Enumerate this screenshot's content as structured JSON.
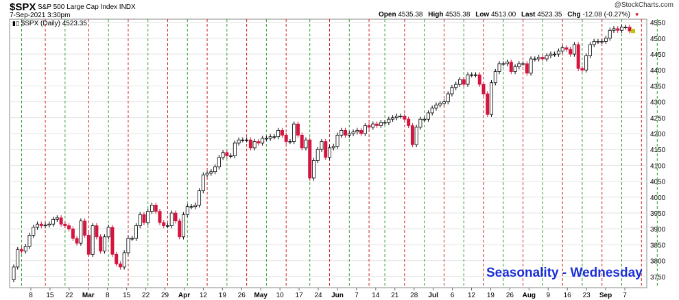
{
  "header": {
    "symbol": "$SPX",
    "description": "S&P 500 Large Cap Index INDX",
    "date": "7-Sep-2021 3:30pm",
    "copyright": "@StockCharts.com",
    "open_label": "Open",
    "open": "4535.38",
    "high_label": "High",
    "high": "4535.38",
    "low_label": "Low",
    "low": "4513.00",
    "last_label": "Last",
    "last": "4523.35",
    "chg_label": "Chg",
    "chg": "-12.08 (-0.27%)"
  },
  "legend": {
    "text": "$SPX (Daily) 4523.35"
  },
  "annotation": {
    "text": "Seasonality - Wednesday"
  },
  "colors": {
    "up": "#ffffff",
    "down": "#d4153f",
    "wed_line": "#2e9e2e",
    "other_line": "#d01c1c",
    "title_text": "#1a2fd6"
  },
  "chart_data": {
    "type": "candlestick",
    "y_axis": {
      "range": [
        3715,
        4560
      ],
      "ticks": [
        3750,
        3800,
        3850,
        3900,
        3950,
        4000,
        4050,
        4100,
        4150,
        4200,
        4250,
        4300,
        4350,
        4400,
        4450,
        4500,
        4550
      ],
      "side": "right"
    },
    "x_labels": [
      "8",
      "15",
      "22",
      "Mar",
      "8",
      "15",
      "22",
      "29",
      "Apr",
      "12",
      "19",
      "26",
      "May",
      "10",
      "17",
      "24",
      "Jun",
      "7",
      "14",
      "21",
      "28",
      "Jul",
      "6",
      "12",
      "19",
      "26",
      "Aug",
      "9",
      "16",
      "23",
      "Sep",
      "7"
    ],
    "x_labels_bold": [
      "Mar",
      "Apr",
      "May",
      "Jun",
      "Jul",
      "Aug",
      "Sep"
    ],
    "close": [
      3780,
      3835,
      3830,
      3845,
      3880,
      3905,
      3915,
      3910,
      3912,
      3915,
      3930,
      3935,
      3915,
      3910,
      3900,
      3870,
      3855,
      3925,
      3880,
      3820,
      3910,
      3875,
      3830,
      3875,
      3905,
      3820,
      3790,
      3780,
      3825,
      3870,
      3870,
      3910,
      3945,
      3920,
      3955,
      3975,
      3955,
      3920,
      3910,
      3910,
      3950,
      3925,
      3875,
      3945,
      3970,
      3970,
      3975,
      4020,
      4070,
      4075,
      4080,
      4095,
      4125,
      4140,
      4130,
      4130,
      4170,
      4180,
      4180,
      4180,
      4155,
      4175,
      4170,
      4185,
      4185,
      4190,
      4190,
      4210,
      4195,
      4175,
      4175,
      4230,
      4195,
      4155,
      4180,
      4060,
      4115,
      4150,
      4175,
      4125,
      4155,
      4160,
      4195,
      4210,
      4195,
      4200,
      4205,
      4210,
      4200,
      4225,
      4220,
      4230,
      4225,
      4235,
      4235,
      4245,
      4250,
      4255,
      4255,
      4245,
      4225,
      4165,
      4220,
      4245,
      4245,
      4265,
      4280,
      4290,
      4295,
      4300,
      4325,
      4345,
      4355,
      4370,
      4355,
      4385,
      4385,
      4385,
      4355,
      4325,
      4260,
      4360,
      4395,
      4420,
      4420,
      4425,
      4395,
      4410,
      4420,
      4420,
      4390,
      4435,
      4435,
      4440,
      4435,
      4445,
      4450,
      4450,
      4460,
      4470,
      4465,
      4450,
      4480,
      4405,
      4400,
      4445,
      4480,
      4490,
      4490,
      4490,
      4500,
      4525,
      4530,
      4525,
      4535,
      4535,
      4523
    ],
    "wednesday_lines_index": [
      2,
      13,
      24,
      34,
      44,
      54,
      64,
      75,
      85,
      94,
      104,
      114,
      124,
      134,
      144,
      154,
      163
    ],
    "other_lines_index": [
      8,
      19,
      29,
      39,
      49,
      59,
      69,
      80,
      90,
      99,
      109,
      119,
      129,
      139,
      149,
      159
    ]
  }
}
